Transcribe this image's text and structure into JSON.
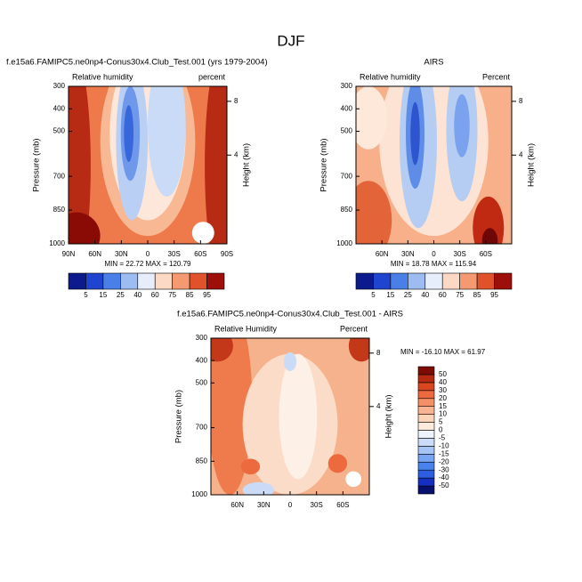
{
  "title": "DJF",
  "chart_data": [
    {
      "type": "contour",
      "title": "f.e15a6.FAMIPC5.ne0np4-Conus30x4.Club_Test.001 (yrs 1979-2004)",
      "left_label": "Relative humidity",
      "right_label": "percent",
      "ylabel": "Pressure (mb)",
      "y2label": "Height (km)",
      "stats": "MIN =  22.72   MAX = 120.79",
      "xlim": [
        90,
        -90
      ],
      "xticks": [
        {
          "value": 90,
          "label": "90N"
        },
        {
          "value": 60,
          "label": "60N"
        },
        {
          "value": 30,
          "label": "30N"
        },
        0,
        {
          "value": -30,
          "label": "30S"
        },
        {
          "value": -60,
          "label": "60S"
        },
        {
          "value": -90,
          "label": "90S"
        }
      ],
      "ylim": [
        1000,
        300
      ],
      "yticks": [
        300,
        400,
        500,
        700,
        850,
        1000
      ],
      "y2lim": [
        0,
        9.6
      ],
      "y2ticks": [
        4,
        8
      ],
      "colorbar": {
        "orientation": "horizontal",
        "levels": [
          5,
          15,
          25,
          40,
          60,
          75,
          85,
          95
        ],
        "colors": [
          "#0b1a8c",
          "#1f45d0",
          "#4a7fe8",
          "#9dbdf2",
          "#e6eefb",
          "#fbd9c4",
          "#f59a70",
          "#e0522a",
          "#9c0f0a"
        ]
      }
    },
    {
      "type": "contour",
      "title": "AIRS",
      "left_label": "Relative humidity",
      "right_label": "Percent",
      "ylabel": "Pressure (mb)",
      "y2label": "Height (km)",
      "stats": "MIN =  18.78   MAX = 115.94",
      "xlim": [
        90,
        -90
      ],
      "xticks": [
        {
          "value": 60,
          "label": "60N"
        },
        {
          "value": 30,
          "label": "30N"
        },
        0,
        {
          "value": -30,
          "label": "30S"
        },
        {
          "value": -60,
          "label": "60S"
        }
      ],
      "ylim": [
        1000,
        300
      ],
      "yticks": [
        300,
        400,
        500,
        700,
        850,
        1000
      ],
      "y2lim": [
        0,
        9.6
      ],
      "y2ticks": [
        4,
        8
      ],
      "colorbar": {
        "orientation": "horizontal",
        "levels": [
          5,
          15,
          25,
          40,
          60,
          75,
          85,
          95
        ],
        "colors": [
          "#0b1a8c",
          "#1f45d0",
          "#4a7fe8",
          "#9dbdf2",
          "#e6eefb",
          "#fbd9c4",
          "#f59a70",
          "#e0522a",
          "#9c0f0a"
        ]
      }
    },
    {
      "type": "contour",
      "title": "f.e15a6.FAMIPC5.ne0np4-Conus30x4.Club_Test.001 - AIRS",
      "left_label": "Relative Humidity",
      "right_label": "Percent",
      "ylabel": "Pressure (mb)",
      "y2label": "Height (km)",
      "stats": "MIN = -16.10   MAX =  61.97",
      "xlim": [
        90,
        -90
      ],
      "xticks": [
        {
          "value": 60,
          "label": "60N"
        },
        {
          "value": 30,
          "label": "30N"
        },
        0,
        {
          "value": -30,
          "label": "30S"
        },
        {
          "value": -60,
          "label": "60S"
        }
      ],
      "ylim": [
        1000,
        300
      ],
      "yticks": [
        300,
        400,
        500,
        700,
        850,
        1000
      ],
      "y2lim": [
        0,
        9.6
      ],
      "y2ticks": [
        4,
        8
      ],
      "colorbar": {
        "orientation": "vertical",
        "levels": [
          -50,
          -40,
          -30,
          -20,
          -15,
          -10,
          -5,
          0,
          5,
          10,
          15,
          20,
          30,
          40,
          50
        ],
        "colors": [
          "#08106e",
          "#1530c0",
          "#2e5ee0",
          "#4a82ec",
          "#78a4f2",
          "#a6c4f5",
          "#ccdcf8",
          "#eef2fb",
          "#fcebdc",
          "#fbd3b8",
          "#f8b490",
          "#f49066",
          "#ec6a3e",
          "#d9471f",
          "#b52a10",
          "#7c0c04"
        ]
      }
    }
  ]
}
